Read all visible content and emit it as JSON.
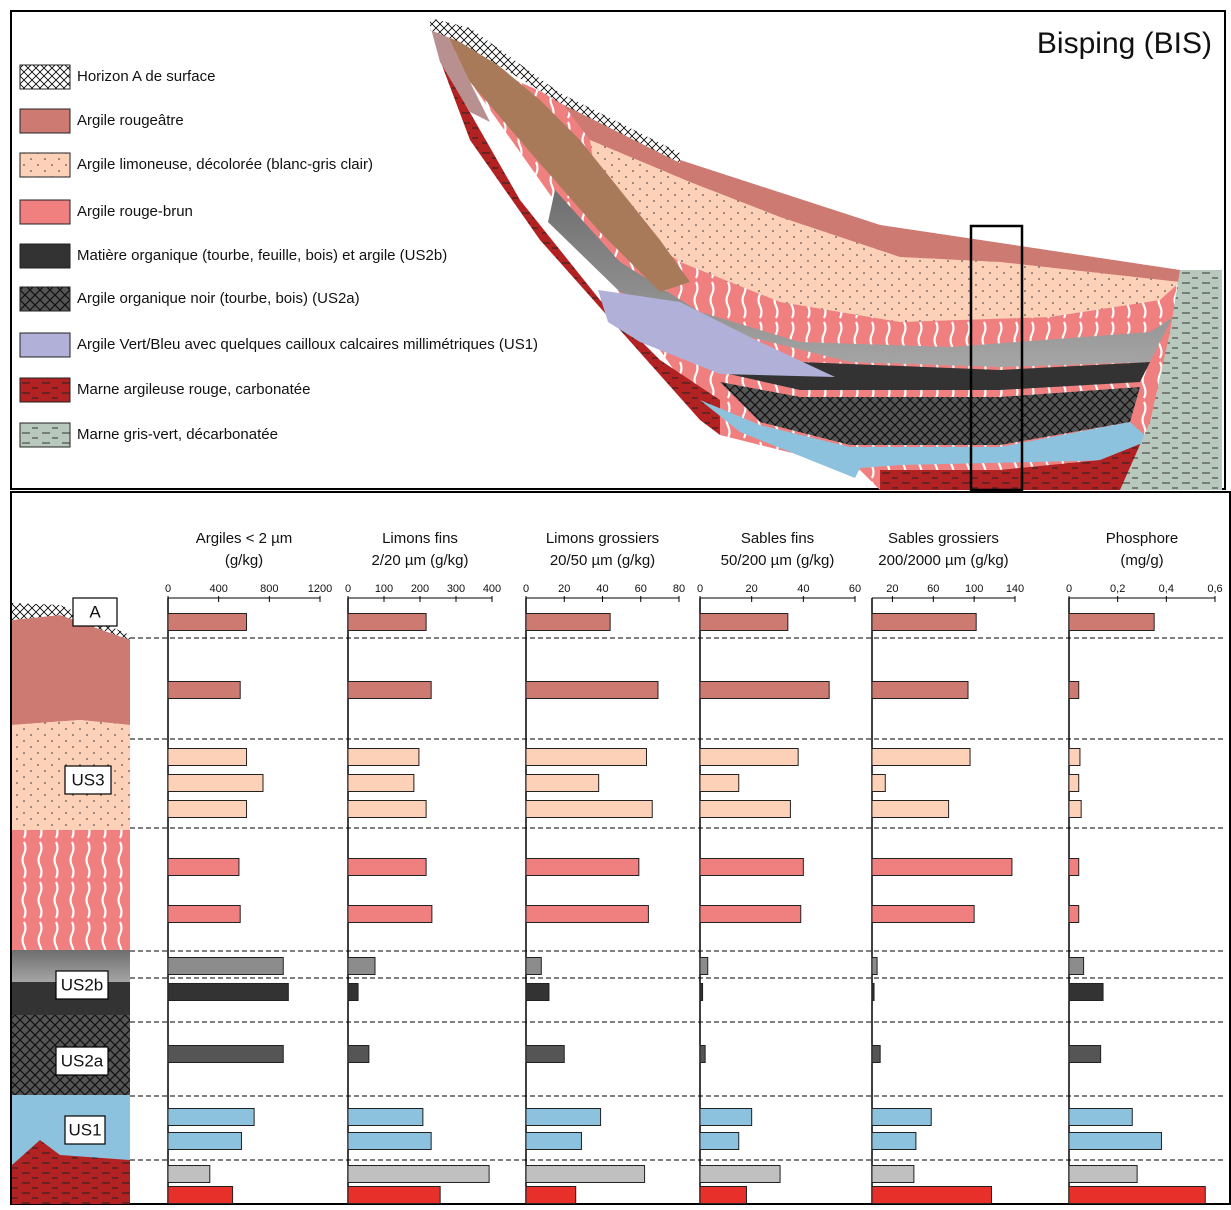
{
  "section": {
    "title": "Bisping (BIS)",
    "legend": [
      "Horizon A de surface",
      "Argile rougeâtre",
      "Argile limoneuse, décolorée (blanc-gris clair)",
      "Argile rouge-brun",
      "Matière organique (tourbe, feuille, bois) et argile (US2b)",
      "Argile organique noir (tourbe, bois) (US2a)",
      "Argile Vert/Bleu avec quelques cailloux calcaires millimétriques (US1)",
      "Marne argileuse rouge, carbonatée",
      "Marne gris-vert, décarbonatée"
    ]
  },
  "column": {
    "labels": [
      "A",
      "US3",
      "US2b",
      "US2a",
      "US1"
    ]
  },
  "chart_data": [
    {
      "type": "bar",
      "title": "Argiles < 2 µm",
      "subtitle": "(g/kg)",
      "xlim": [
        0,
        1200
      ],
      "xticks": [
        0,
        400,
        800,
        1200
      ],
      "values": [
        620,
        570,
        620,
        750,
        620,
        560,
        570,
        910,
        950,
        910,
        680,
        580,
        330,
        510
      ],
      "colors": [
        "#cd7a72",
        "#cd7a72",
        "#fdd0b8",
        "#fdd0b8",
        "#fdd0b8",
        "#f08080",
        "#f08080",
        "#8c8c8c",
        "#333333",
        "#555555",
        "#8dc2de",
        "#8dc2de",
        "#c0c0c0",
        "#e8302a"
      ]
    },
    {
      "type": "bar",
      "title": "Limons fins",
      "subtitle": "2/20 µm (g/kg)",
      "xlim": [
        0,
        400
      ],
      "xticks": [
        0,
        100,
        200,
        300,
        400
      ],
      "values": [
        217,
        231,
        197,
        183,
        217,
        217,
        233,
        75,
        28,
        58,
        208,
        231,
        392,
        256
      ],
      "colors": [
        "#cd7a72",
        "#cd7a72",
        "#fdd0b8",
        "#fdd0b8",
        "#fdd0b8",
        "#f08080",
        "#f08080",
        "#8c8c8c",
        "#333333",
        "#555555",
        "#8dc2de",
        "#8dc2de",
        "#c0c0c0",
        "#e8302a"
      ]
    },
    {
      "type": "bar",
      "title": "Limons grossiers",
      "subtitle": "20/50 µm (g/kg)",
      "xlim": [
        0,
        80
      ],
      "xticks": [
        0,
        20,
        40,
        60,
        80
      ],
      "values": [
        44,
        69,
        63,
        38,
        66,
        59,
        64,
        8,
        12,
        20,
        39,
        29,
        62,
        26
      ],
      "colors": [
        "#cd7a72",
        "#cd7a72",
        "#fdd0b8",
        "#fdd0b8",
        "#fdd0b8",
        "#f08080",
        "#f08080",
        "#8c8c8c",
        "#333333",
        "#555555",
        "#8dc2de",
        "#8dc2de",
        "#c0c0c0",
        "#e8302a"
      ]
    },
    {
      "type": "bar",
      "title": "Sables fins",
      "subtitle": "50/200 µm (g/kg)",
      "xlim": [
        0,
        60
      ],
      "xticks": [
        0,
        20,
        40,
        60
      ],
      "values": [
        34,
        50,
        38,
        15,
        35,
        40,
        39,
        3,
        1,
        2,
        20,
        15,
        31,
        18
      ],
      "colors": [
        "#cd7a72",
        "#cd7a72",
        "#fdd0b8",
        "#fdd0b8",
        "#fdd0b8",
        "#f08080",
        "#f08080",
        "#8c8c8c",
        "#333333",
        "#555555",
        "#8dc2de",
        "#8dc2de",
        "#c0c0c0",
        "#e8302a"
      ]
    },
    {
      "type": "bar",
      "title": "Sables grossiers",
      "subtitle": "200/2000 µm (g/kg)",
      "xlim": [
        0,
        140
      ],
      "xticks": [
        20,
        60,
        100,
        140
      ],
      "values": [
        102,
        94,
        96,
        13,
        75,
        137,
        100,
        5,
        2,
        8,
        58,
        43,
        41,
        117
      ],
      "colors": [
        "#cd7a72",
        "#cd7a72",
        "#fdd0b8",
        "#fdd0b8",
        "#fdd0b8",
        "#f08080",
        "#f08080",
        "#8c8c8c",
        "#333333",
        "#555555",
        "#8dc2de",
        "#8dc2de",
        "#c0c0c0",
        "#e8302a"
      ]
    },
    {
      "type": "bar",
      "title": "Phosphore",
      "subtitle": "(mg/g)",
      "xlim": [
        0,
        0.6
      ],
      "xticks": [
        0,
        {
          "value": 0.2,
          "label": "0,2"
        },
        {
          "value": 0.4,
          "label": "0,4"
        },
        {
          "value": 0.6,
          "label": "0,6"
        }
      ],
      "values": [
        0.35,
        0.04,
        0.045,
        0.04,
        0.05,
        0.04,
        0.04,
        0.06,
        0.14,
        0.13,
        0.26,
        0.38,
        0.28,
        0.56
      ],
      "colors": [
        "#cd7a72",
        "#cd7a72",
        "#fdd0b8",
        "#fdd0b8",
        "#fdd0b8",
        "#f08080",
        "#f08080",
        "#8c8c8c",
        "#333333",
        "#555555",
        "#8dc2de",
        "#8dc2de",
        "#c0c0c0",
        "#e8302a"
      ]
    }
  ]
}
